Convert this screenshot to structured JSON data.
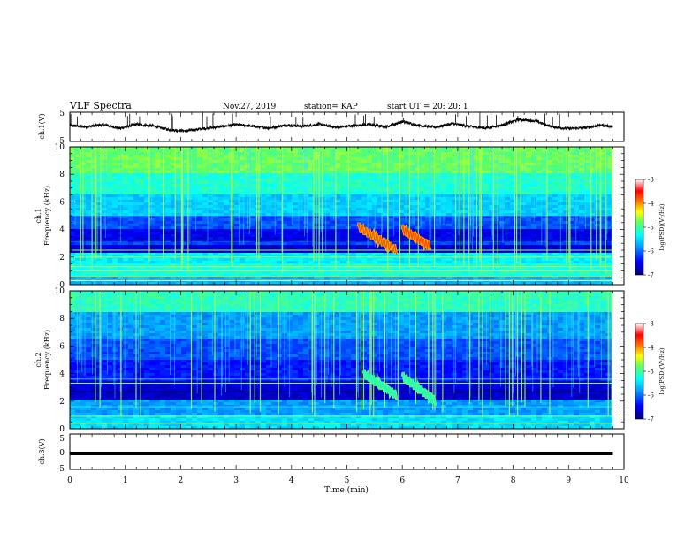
{
  "header": {
    "title": "VLF Spectra",
    "date": "Nov.27, 2019",
    "station": "station= KAP",
    "start": "start  UT =   20: 20: 1"
  },
  "chart_data": [
    {
      "type": "line",
      "ylabel": "ch.1(V)",
      "xlim": [
        0,
        10
      ],
      "ylim": [
        -5,
        5
      ],
      "yticks": [
        "5",
        "-5"
      ],
      "series_desc": "noisy voltage trace around 0 V",
      "trace_profile": [
        [
          0,
          0.5
        ],
        [
          0.3,
          0.0
        ],
        [
          0.6,
          0.8
        ],
        [
          0.9,
          -0.5
        ],
        [
          1.2,
          0.9
        ],
        [
          1.5,
          0.3
        ],
        [
          1.8,
          -1.0
        ],
        [
          2.1,
          -1.4
        ],
        [
          2.4,
          -0.6
        ],
        [
          2.7,
          0.0
        ],
        [
          3.0,
          0.8
        ],
        [
          3.3,
          0.2
        ],
        [
          3.6,
          -0.4
        ],
        [
          3.9,
          0.6
        ],
        [
          4.2,
          0.2
        ],
        [
          4.5,
          0.9
        ],
        [
          4.8,
          -0.2
        ],
        [
          5.1,
          0.4
        ],
        [
          5.4,
          0.8
        ],
        [
          5.7,
          0.0
        ],
        [
          6.0,
          1.8
        ],
        [
          6.3,
          0.5
        ],
        [
          6.6,
          -0.1
        ],
        [
          6.9,
          1.1
        ],
        [
          7.2,
          0.2
        ],
        [
          7.5,
          -0.4
        ],
        [
          7.8,
          0.6
        ],
        [
          8.1,
          2.5
        ],
        [
          8.4,
          2.0
        ],
        [
          8.7,
          0.0
        ],
        [
          9.0,
          -0.6
        ],
        [
          9.3,
          -0.3
        ],
        [
          9.6,
          0.6
        ],
        [
          9.8,
          0.1
        ]
      ]
    },
    {
      "type": "heatmap",
      "ylabel": "ch.1",
      "ylabel2": "Frequency (kHz)",
      "xlim": [
        0,
        10
      ],
      "ylim": [
        0,
        10
      ],
      "yticks": [
        "0",
        "2",
        "4",
        "6",
        "8",
        "10"
      ],
      "colorbar": {
        "title": "log(PSD)(V²/Hz)",
        "ticks": [
          "-3",
          "-4",
          "-5",
          "-6",
          "-7"
        ],
        "range": [
          -7,
          -3
        ]
      },
      "features": [
        {
          "t_start": 5.2,
          "t_end": 5.9,
          "f_low": 2.5,
          "f_high": 4.2
        },
        {
          "t_start": 6.0,
          "t_end": 6.5,
          "f_low": 2.8,
          "f_high": 4.0
        }
      ]
    },
    {
      "type": "heatmap",
      "ylabel": "ch.2",
      "ylabel2": "Frequency (kHz)",
      "xlim": [
        0,
        10
      ],
      "ylim": [
        0,
        10
      ],
      "yticks": [
        "0",
        "2",
        "4",
        "6",
        "8",
        "10"
      ],
      "colorbar": {
        "title": "log(PSD)(V²/Hz)",
        "ticks": [
          "-3",
          "-4",
          "-5",
          "-6",
          "-7"
        ],
        "range": [
          -7,
          -3
        ]
      },
      "features": [
        {
          "t_start": 5.3,
          "t_end": 5.9,
          "f_low": 2.4,
          "f_high": 4.0
        },
        {
          "t_start": 6.0,
          "t_end": 6.6,
          "f_low": 2.0,
          "f_high": 3.8
        }
      ]
    },
    {
      "type": "line",
      "ylabel": "ch.3(V)",
      "xlim": [
        0,
        10
      ],
      "ylim": [
        -5,
        5
      ],
      "yticks": [
        "5",
        "0",
        "-5"
      ],
      "series_desc": "flat trace near -0.5 V",
      "trace_profile": [
        [
          0,
          -0.5
        ],
        [
          9.8,
          -0.5
        ]
      ]
    }
  ],
  "xaxis": {
    "label": "Time (min)",
    "ticks": [
      "0",
      "1",
      "2",
      "3",
      "4",
      "5",
      "6",
      "7",
      "8",
      "9",
      "10"
    ]
  },
  "colormap": [
    "#000080",
    "#0000ff",
    "#00a0ff",
    "#00ffff",
    "#60ff60",
    "#ffff00",
    "#ff8000",
    "#ff0000",
    "#ffffff"
  ]
}
